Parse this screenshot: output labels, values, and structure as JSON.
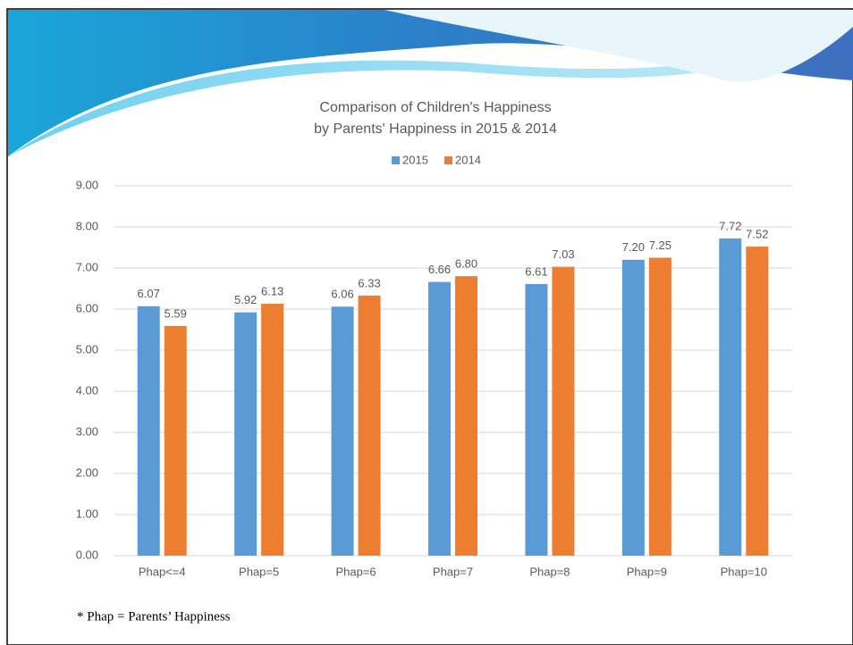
{
  "chart_data": {
    "type": "bar",
    "title": [
      "Comparison of Children's Happiness",
      "by Parents' Happiness in 2015 & 2014"
    ],
    "categories": [
      "Phap<=4",
      "Phap=5",
      "Phap=6",
      "Phap=7",
      "Phap=8",
      "Phap=9",
      "Phap=10"
    ],
    "series": [
      {
        "name": "2015",
        "color": "#5b9bd5",
        "values": [
          6.07,
          5.92,
          6.06,
          6.66,
          6.61,
          7.2,
          7.72
        ],
        "value_labels": [
          "6.07",
          "5.92",
          "6.06",
          "6.66",
          "6.61",
          "7.20",
          "7.72"
        ]
      },
      {
        "name": "2014",
        "color": "#ed7d31",
        "values": [
          5.59,
          6.13,
          6.33,
          6.8,
          7.03,
          7.25,
          7.52
        ],
        "value_labels": [
          "5.59",
          "6.13",
          "6.33",
          "6.80",
          "7.03",
          "7.25",
          "7.52"
        ]
      }
    ],
    "ylim": [
      0,
      9
    ],
    "yticks": [
      {
        "value": 0,
        "label": "0.00"
      },
      {
        "value": 1,
        "label": "1.00"
      },
      {
        "value": 2,
        "label": "2.00"
      },
      {
        "value": 3,
        "label": "3.00"
      },
      {
        "value": 4,
        "label": "4.00"
      },
      {
        "value": 5,
        "label": "5.00"
      },
      {
        "value": 6,
        "label": "6.00"
      },
      {
        "value": 7,
        "label": "7.00"
      },
      {
        "value": 8,
        "label": "8.00"
      },
      {
        "value": 9,
        "label": "9.00"
      }
    ],
    "grid": true,
    "legend": "top"
  },
  "footnote": "* Phap = Parents’ Happiness"
}
